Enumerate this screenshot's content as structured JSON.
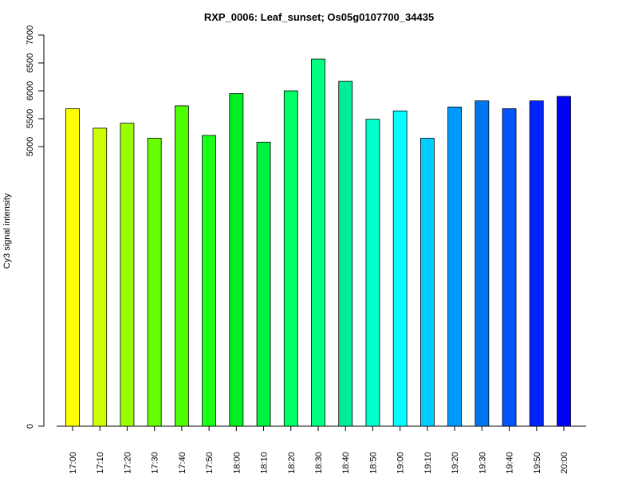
{
  "chart_data": {
    "type": "bar",
    "title": "RXP_0006: Leaf_sunset; Os05g0107700_34435",
    "xlabel": "",
    "ylabel": "Cy3 signal intensity",
    "ylim": [
      0,
      7000
    ],
    "y_ticks": [
      "0",
      "5000",
      "5500",
      "6000",
      "6500",
      "7000"
    ],
    "y_tick_values": [
      0,
      5000,
      5500,
      6000,
      6500,
      7000
    ],
    "y_axis_note": "broken scale: 0 then 5000-7000",
    "categories": [
      "17:00",
      "17:10",
      "17:20",
      "17:30",
      "17:40",
      "17:50",
      "18:00",
      "18:10",
      "18:20",
      "18:30",
      "18:40",
      "18:50",
      "19:00",
      "19:10",
      "19:20",
      "19:30",
      "19:40",
      "19:50",
      "20:00"
    ],
    "values": [
      5680,
      5330,
      5420,
      5150,
      5730,
      5200,
      5950,
      5080,
      6000,
      6570,
      6170,
      5490,
      5640,
      5150,
      5710,
      5820,
      5680,
      5820,
      5900
    ],
    "colors": [
      "#FFFF00",
      "#CCFF00",
      "#99FF00",
      "#66FF00",
      "#4DFF00",
      "#1AFF1A",
      "#00EE22",
      "#00F23C",
      "#00FF66",
      "#00FF80",
      "#00EE99",
      "#00FFCC",
      "#00FFFF",
      "#00CCFF",
      "#0099FF",
      "#0077EE",
      "#0055FF",
      "#0022FF",
      "#0000FF"
    ],
    "grid": false,
    "legend": "none"
  }
}
